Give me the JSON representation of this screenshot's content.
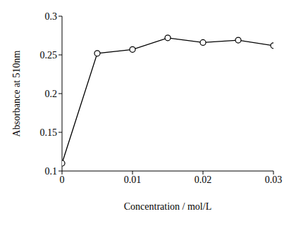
{
  "chart_data": {
    "type": "line",
    "x_label": "Concentration / mol/L",
    "y_label": "Absorbance at 510nm",
    "x": [
      0,
      0.005,
      0.01,
      0.015,
      0.02,
      0.025,
      0.03
    ],
    "series": [
      {
        "name": "Absorbance",
        "color": "#000000",
        "values": [
          0.11,
          0.252,
          0.257,
          0.272,
          0.266,
          0.269,
          0.262
        ],
        "marker": "circle",
        "line_style": "solid"
      }
    ],
    "xlim": [
      0,
      0.03
    ],
    "xticks": [
      0,
      0.01,
      0.02,
      0.03
    ],
    "ylim": [
      0.1,
      0.3
    ],
    "yticks": [
      0.1,
      0.15,
      0.2,
      0.25,
      0.3
    ],
    "grid": false
  }
}
